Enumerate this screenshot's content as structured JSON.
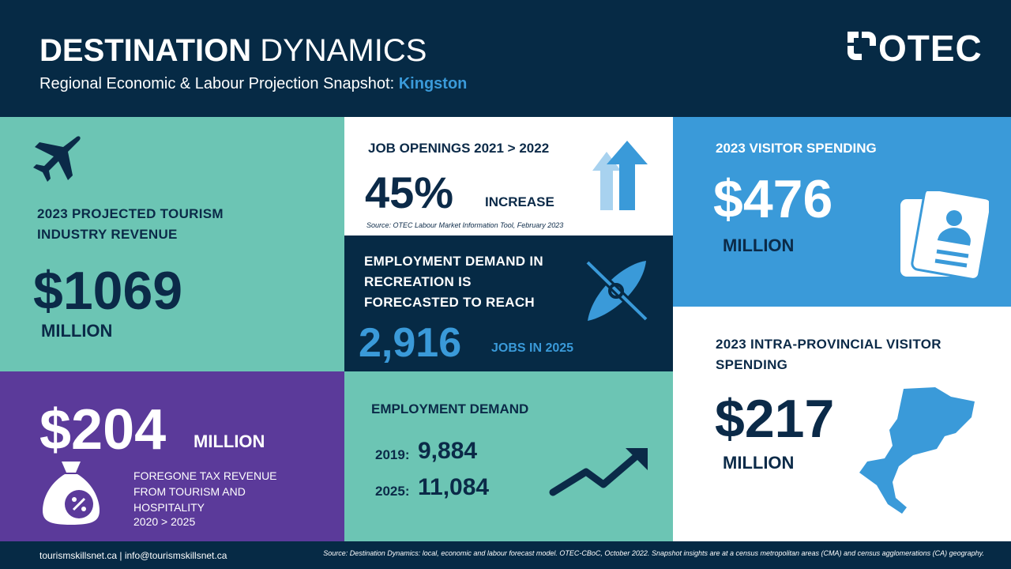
{
  "header": {
    "title_bold": "DESTINATION",
    "title_light": "DYNAMICS",
    "subtitle": "Regional Economic & Labour Projection Snapshot:",
    "region": "Kingston",
    "logo": "OTEC"
  },
  "tourism_revenue": {
    "label": "2023 PROJECTED TOURISM INDUSTRY REVENUE",
    "value": "$1069",
    "unit": "MILLION"
  },
  "foregone_tax": {
    "value": "$204",
    "unit": "MILLION",
    "label": "FOREGONE TAX REVENUE FROM TOURISM AND HOSPITALITY",
    "period": "2020 > 2025"
  },
  "job_openings": {
    "label": "JOB OPENINGS 2021 > 2022",
    "value": "45%",
    "unit": "INCREASE",
    "source": "Source: OTEC Labour Market Information Tool, February 2023"
  },
  "recreation": {
    "label": "EMPLOYMENT DEMAND IN RECREATION IS FORECASTED TO REACH",
    "value": "2,916",
    "unit": "JOBS IN 2025"
  },
  "employment_demand": {
    "label": "EMPLOYMENT DEMAND",
    "rows": [
      {
        "year": "2019:",
        "value": "9,884"
      },
      {
        "year": "2025:",
        "value": "11,084"
      }
    ]
  },
  "visitor_spending": {
    "label": "2023 VISITOR SPENDING",
    "value": "$476",
    "unit": "MILLION"
  },
  "intra_provincial": {
    "label": "2023 INTRA-PROVINCIAL VISITOR SPENDING",
    "value": "$217",
    "unit": "MILLION"
  },
  "footer": {
    "website": "tourismskillsnet.ca",
    "separator": "|",
    "email": "info@tourismskillsnet.ca",
    "source": "Source: Destination Dynamics: local, economic and labour forecast model. OTEC-CBoC, October 2022. Snapshot insights are at a census metropolitan areas (CMA) and census agglomerations (CA) geography."
  }
}
